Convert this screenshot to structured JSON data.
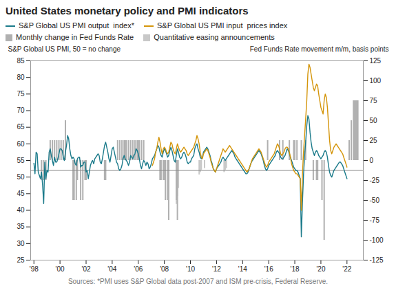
{
  "chart_data": {
    "type": "line",
    "title": "United States monetary policy and PMI indicators",
    "ylabel": "S&P Global US PMI, 50 = no change",
    "y2label": "Fed Funds Rate movement m/m, basis points",
    "source": "Sources: *PMI uses S&P Global data post-2007 and ISM pre-crisis, Federal Reserve.",
    "legend": "top",
    "xlim": [
      1997.75,
      2023.25
    ],
    "xticks": [
      {
        "value": 1998,
        "label": "'98"
      },
      {
        "value": 2000,
        "label": "'00"
      },
      {
        "value": 2002,
        "label": "'02"
      },
      {
        "value": 2004,
        "label": "'04"
      },
      {
        "value": 2006,
        "label": "'06"
      },
      {
        "value": 2008,
        "label": "'08"
      },
      {
        "value": 2010,
        "label": "'10"
      },
      {
        "value": 2012,
        "label": "'12"
      },
      {
        "value": 2014,
        "label": "'14"
      },
      {
        "value": 2016,
        "label": "'16"
      },
      {
        "value": 2018,
        "label": "'18"
      },
      {
        "value": 2020,
        "label": "'20"
      },
      {
        "value": 2022,
        "label": "'22"
      }
    ],
    "ylim": [
      25,
      85
    ],
    "yticks": [
      25,
      30,
      35,
      40,
      45,
      50,
      55,
      60,
      65,
      70,
      75,
      80,
      85
    ],
    "y2lim": [
      -125,
      125
    ],
    "y2ticks": [
      -125,
      -100,
      -75,
      -50,
      -25,
      0,
      25,
      50,
      75,
      100,
      125
    ],
    "hline": {
      "y": 52,
      "color": "#888888"
    },
    "x": [
      1998,
      1998.083,
      1998.167,
      1998.25,
      1998.333,
      1998.417,
      1998.5,
      1998.583,
      1998.667,
      1998.75,
      1998.833,
      1998.917,
      1999,
      1999.083,
      1999.167,
      1999.25,
      1999.333,
      1999.417,
      1999.5,
      1999.583,
      1999.667,
      1999.75,
      1999.833,
      1999.917,
      2000,
      2000.083,
      2000.167,
      2000.25,
      2000.333,
      2000.417,
      2000.5,
      2000.583,
      2000.667,
      2000.75,
      2000.833,
      2000.917,
      2001,
      2001.083,
      2001.167,
      2001.25,
      2001.333,
      2001.417,
      2001.5,
      2001.583,
      2001.667,
      2001.75,
      2001.833,
      2001.917,
      2002,
      2002.083,
      2002.167,
      2002.25,
      2002.333,
      2002.417,
      2002.5,
      2002.583,
      2002.667,
      2002.75,
      2002.833,
      2002.917,
      2003,
      2003.083,
      2003.167,
      2003.25,
      2003.333,
      2003.417,
      2003.5,
      2003.583,
      2003.667,
      2003.75,
      2003.833,
      2003.917,
      2004,
      2004.083,
      2004.167,
      2004.25,
      2004.333,
      2004.417,
      2004.5,
      2004.583,
      2004.667,
      2004.75,
      2004.833,
      2004.917,
      2005,
      2005.083,
      2005.167,
      2005.25,
      2005.333,
      2005.417,
      2005.5,
      2005.583,
      2005.667,
      2005.75,
      2005.833,
      2005.917,
      2006,
      2006.083,
      2006.167,
      2006.25,
      2006.333,
      2006.417,
      2006.5,
      2006.583,
      2006.667,
      2006.75,
      2006.833,
      2006.917,
      2007,
      2007.083,
      2007.167,
      2007.25,
      2007.333,
      2007.417,
      2007.5,
      2007.583,
      2007.667,
      2007.75,
      2007.833,
      2007.917,
      2008,
      2008.083,
      2008.167,
      2008.25,
      2008.333,
      2008.417,
      2008.5,
      2008.583,
      2008.667,
      2008.75,
      2008.833,
      2008.917,
      2009,
      2009.083,
      2009.167,
      2009.25,
      2009.333,
      2009.417,
      2009.5,
      2009.583,
      2009.667,
      2009.75,
      2009.833,
      2009.917,
      2010,
      2010.083,
      2010.167,
      2010.25,
      2010.333,
      2010.417,
      2010.5,
      2010.583,
      2010.667,
      2010.75,
      2010.833,
      2010.917,
      2011,
      2011.083,
      2011.167,
      2011.25,
      2011.333,
      2011.417,
      2011.5,
      2011.583,
      2011.667,
      2011.75,
      2011.833,
      2011.917,
      2012,
      2012.083,
      2012.167,
      2012.25,
      2012.333,
      2012.417,
      2012.5,
      2012.583,
      2012.667,
      2012.75,
      2012.833,
      2012.917,
      2013,
      2013.083,
      2013.167,
      2013.25,
      2013.333,
      2013.417,
      2013.5,
      2013.583,
      2013.667,
      2013.75,
      2013.833,
      2013.917,
      2014,
      2014.083,
      2014.167,
      2014.25,
      2014.333,
      2014.417,
      2014.5,
      2014.583,
      2014.667,
      2014.75,
      2014.833,
      2014.917,
      2015,
      2015.083,
      2015.167,
      2015.25,
      2015.333,
      2015.417,
      2015.5,
      2015.583,
      2015.667,
      2015.75,
      2015.833,
      2015.917,
      2016,
      2016.083,
      2016.167,
      2016.25,
      2016.333,
      2016.417,
      2016.5,
      2016.583,
      2016.667,
      2016.75,
      2016.833,
      2016.917,
      2017,
      2017.083,
      2017.167,
      2017.25,
      2017.333,
      2017.417,
      2017.5,
      2017.583,
      2017.667,
      2017.75,
      2017.833,
      2017.917,
      2018,
      2018.083,
      2018.167,
      2018.25,
      2018.333,
      2018.417,
      2018.5,
      2018.583,
      2018.667,
      2018.75,
      2018.833,
      2018.917,
      2019,
      2019.083,
      2019.167,
      2019.25,
      2019.333,
      2019.417,
      2019.5,
      2019.583,
      2019.667,
      2019.75,
      2019.833,
      2019.917,
      2020,
      2020.083,
      2020.167,
      2020.25,
      2020.333,
      2020.417,
      2020.5,
      2020.583,
      2020.667,
      2020.75,
      2020.833,
      2020.917,
      2021,
      2021.083,
      2021.167,
      2021.25,
      2021.333,
      2021.417,
      2021.5,
      2021.583,
      2021.667,
      2021.75,
      2021.833,
      2021.917,
      2022
    ],
    "series": [
      {
        "name": "S&P Global US PMI output  index*",
        "type": "line",
        "color": "#1a7a8a",
        "values": [
          54.2,
          51.0,
          57.5,
          57.0,
          51.5,
          50.5,
          49.5,
          51.5,
          47.5,
          42.0,
          54.5,
          49.5,
          52.0,
          51.5,
          57.5,
          58.5,
          56.5,
          55.0,
          53.5,
          56.0,
          54.5,
          54.5,
          55.5,
          57.0,
          58.5,
          58.5,
          58.0,
          56.0,
          55.0,
          57.5,
          59.5,
          62.5,
          61.5,
          58.5,
          56.5,
          55.5,
          56.0,
          55.5,
          54.0,
          53.5,
          55.5,
          56.0,
          56.0,
          53.0,
          53.5,
          53.5,
          54.5,
          54.5,
          51.5,
          52.0,
          49.5,
          51.5,
          53.5,
          54.5,
          55.0,
          54.0,
          55.5,
          56.0,
          56.5,
          57.0,
          56.5,
          54.5,
          54.0,
          55.5,
          57.5,
          59.5,
          60.5,
          59.0,
          57.5,
          55.5,
          54.5,
          56.5,
          58.5,
          59.0,
          57.5,
          56.0,
          54.5,
          54.0,
          52.5,
          52.0,
          52.5,
          53.5,
          55.5,
          56.5,
          55.5,
          55.0,
          54.5,
          53.5,
          54.5,
          56.5,
          56.0,
          55.5,
          56.5,
          57.0,
          58.5,
          58.0,
          57.0,
          55.5,
          53.5,
          52.5,
          54.0,
          55.0,
          54.5,
          53.5,
          54.5,
          54.0,
          52.5,
          53.0,
          54.0,
          55.5,
          56.0,
          56.5,
          57.5,
          58.5,
          59.5,
          59.0,
          57.5,
          56.5,
          56.0,
          57.5,
          58.5,
          58.0,
          57.0,
          56.0,
          56.5,
          58.0,
          59.0,
          58.0,
          56.5,
          55.0,
          54.5,
          56.5,
          58.5,
          57.5,
          56.0,
          55.5,
          56.0,
          57.0,
          57.5,
          57.0,
          56.0,
          54.5,
          54.0,
          54.5,
          54.5,
          55.5,
          56.0,
          56.5,
          58.5,
          59.5,
          60.0,
          58.5,
          57.5,
          56.0,
          55.5,
          56.0,
          57.5,
          58.0,
          58.5,
          59.0,
          58.5,
          57.5,
          56.5,
          55.0,
          54.0,
          52.5,
          52.0,
          51.5,
          52.5,
          53.0,
          53.5,
          54.0,
          54.5,
          55.5,
          56.0,
          55.5,
          55.0,
          55.5,
          56.0,
          56.5,
          57.0,
          57.5,
          58.0,
          57.5,
          57.0,
          56.0,
          55.5,
          55.0,
          54.5,
          54.0,
          53.5,
          53.0,
          52.5,
          52.0,
          51.5,
          51.0,
          51.0,
          51.5,
          52.5,
          53.5,
          54.5,
          55.0,
          55.5,
          56.0,
          56.5,
          57.0,
          57.5,
          58.0,
          57.5,
          57.0,
          56.0,
          55.0,
          53.5,
          52.5,
          52.0,
          52.5,
          53.5,
          54.0,
          54.5,
          55.0,
          55.5,
          56.0,
          56.5,
          57.5,
          58.0,
          57.5,
          57.0,
          56.0,
          55.5,
          55.5,
          56.0,
          56.5,
          57.5,
          58.5,
          58.0,
          57.0,
          56.0,
          55.0,
          54.0,
          53.0,
          52.5,
          52.0,
          52.0,
          51.5,
          50.5,
          49.5,
          32.0,
          42.0,
          50.5,
          56.5,
          60.5,
          65.5,
          68.5,
          67.5,
          63.5,
          60.5,
          58.5,
          57.5,
          56.5,
          57.5,
          58.0,
          57.5,
          56.5,
          56.0,
          55.5,
          56.0,
          56.5,
          57.5,
          58.0,
          57.5,
          56.0,
          53.5,
          51.5,
          50.5,
          50.0,
          51.0,
          52.0,
          52.5,
          53.0,
          53.5,
          54.0,
          54.5,
          54.5,
          54.0,
          53.5,
          52.5,
          51.5,
          50.5,
          49.5
        ]
      },
      {
        "name": "S&P Global US PMI input  prices index",
        "type": "line",
        "color": "#d4950a",
        "values": [
          null,
          null,
          null,
          null,
          null,
          null,
          null,
          null,
          null,
          null,
          null,
          null,
          null,
          null,
          null,
          null,
          null,
          null,
          null,
          null,
          null,
          null,
          null,
          null,
          null,
          null,
          null,
          null,
          null,
          null,
          null,
          null,
          null,
          null,
          null,
          null,
          null,
          null,
          null,
          null,
          null,
          null,
          null,
          null,
          null,
          null,
          null,
          null,
          null,
          null,
          null,
          null,
          null,
          null,
          null,
          null,
          null,
          null,
          null,
          null,
          null,
          null,
          null,
          null,
          null,
          null,
          null,
          null,
          null,
          null,
          null,
          null,
          null,
          null,
          null,
          null,
          null,
          null,
          null,
          null,
          null,
          null,
          null,
          null,
          null,
          null,
          null,
          null,
          null,
          null,
          null,
          null,
          null,
          null,
          null,
          null,
          null,
          null,
          null,
          null,
          null,
          null,
          null,
          null,
          null,
          null,
          null,
          null,
          null,
          53.5,
          54.5,
          55.5,
          57.5,
          58.5,
          60.5,
          62.0,
          60.5,
          58.5,
          57.0,
          58.5,
          59.0,
          58.5,
          57.5,
          57.0,
          57.5,
          59.0,
          60.5,
          60.0,
          58.5,
          57.5,
          57.0,
          58.5,
          60.0,
          59.0,
          58.0,
          57.5,
          58.0,
          58.5,
          59.0,
          58.5,
          58.0,
          57.0,
          56.5,
          57.0,
          57.5,
          58.0,
          58.5,
          59.0,
          60.0,
          61.0,
          62.5,
          61.5,
          60.0,
          57.5,
          56.0,
          55.5,
          57.0,
          57.5,
          58.0,
          58.5,
          58.0,
          57.0,
          56.0,
          54.5,
          53.5,
          52.5,
          52.0,
          51.5,
          52.5,
          53.5,
          54.5,
          55.5,
          56.5,
          57.5,
          58.5,
          58.0,
          57.5,
          58.0,
          58.5,
          59.0,
          59.5,
          59.0,
          58.5,
          58.0,
          57.5,
          57.0,
          56.5,
          56.0,
          55.5,
          55.0,
          54.5,
          54.0,
          53.5,
          53.0,
          52.5,
          52.0,
          51.5,
          52.0,
          52.5,
          53.5,
          54.5,
          55.5,
          56.0,
          56.5,
          57.0,
          57.5,
          58.0,
          58.5,
          58.0,
          57.5,
          56.5,
          55.5,
          54.5,
          53.5,
          53.0,
          53.5,
          54.5,
          55.0,
          55.5,
          56.0,
          56.5,
          57.0,
          58.0,
          59.0,
          60.0,
          59.5,
          58.5,
          57.0,
          56.5,
          57.0,
          57.5,
          58.5,
          59.0,
          59.0,
          58.5,
          57.5,
          56.0,
          54.0,
          53.0,
          52.0,
          51.5,
          51.0,
          51.0,
          50.5,
          50.0,
          49.5,
          40.0,
          50.5,
          57.5,
          62.5,
          67.5,
          73.0,
          81.0,
          84.0,
          83.0,
          81.0,
          79.0,
          77.0,
          76.0,
          77.0,
          78.0,
          77.5,
          75.0,
          73.0,
          71.0,
          70.0,
          69.0,
          73.0,
          75.0,
          74.0,
          71.0,
          66.0,
          61.0,
          58.0,
          57.0,
          58.0,
          59.0,
          59.5,
          60.0,
          59.5,
          59.0,
          58.5,
          58.0,
          57.5,
          57.0,
          56.0,
          55.0,
          54.0,
          53.0
        ]
      },
      {
        "name": "Monthly change in Fed Funds Rate",
        "type": "bar",
        "axis": "y2",
        "color": "#b0b0b0",
        "x": [
          1998.583,
          1998.75,
          1998.917,
          1999.25,
          1999.417,
          1999.583,
          1999.75,
          1999.917,
          2000.083,
          2000.25,
          2000.417,
          2001.0,
          2001.083,
          2001.25,
          2001.333,
          2001.583,
          2001.75,
          2001.917,
          2002.0,
          2003.417,
          2003.5,
          2004.417,
          2004.583,
          2004.75,
          2004.917,
          2005.0,
          2005.083,
          2005.25,
          2005.417,
          2005.583,
          2005.75,
          2005.917,
          2006.0,
          2006.083,
          2006.25,
          2006.417,
          2007.667,
          2007.75,
          2007.917,
          2008.0,
          2008.083,
          2008.25,
          2008.333,
          2008.917,
          2009.0,
          2015.917,
          2016.833,
          2017.083,
          2017.583,
          2017.917,
          2018.0,
          2018.167,
          2018.5,
          2018.833,
          2019.417,
          2019.667,
          2019.75,
          2020.083,
          2020.25,
          2022.167,
          2022.333,
          2022.5,
          2022.583,
          2022.667,
          2022.75,
          2022.833
        ],
        "values": [
          -25,
          -25,
          -25,
          25,
          25,
          25,
          25,
          25,
          25,
          25,
          50,
          -50,
          -50,
          -50,
          -25,
          -50,
          -50,
          -25,
          -25,
          -25,
          -25,
          25,
          25,
          25,
          25,
          25,
          25,
          25,
          25,
          25,
          25,
          25,
          25,
          25,
          25,
          25,
          -25,
          -25,
          -25,
          -25,
          -50,
          -50,
          -75,
          -50,
          -75,
          25,
          25,
          25,
          25,
          25,
          25,
          25,
          25,
          25,
          -25,
          -25,
          -25,
          -50,
          -100,
          25,
          50,
          75,
          75,
          75,
          75,
          75
        ]
      },
      {
        "name": "Quantitative easing announcements",
        "type": "bar",
        "axis": "y2",
        "color": "#c8c8c8",
        "x": [
          2008.92,
          2009.0,
          2009.08,
          2010.67,
          2010.75,
          2010.83,
          2011.08,
          2012.58,
          2012.67,
          2012.75
        ],
        "values": [
          -55,
          -45,
          -35,
          -18,
          -15,
          -12,
          -10,
          -15,
          -12,
          -10
        ]
      }
    ]
  }
}
